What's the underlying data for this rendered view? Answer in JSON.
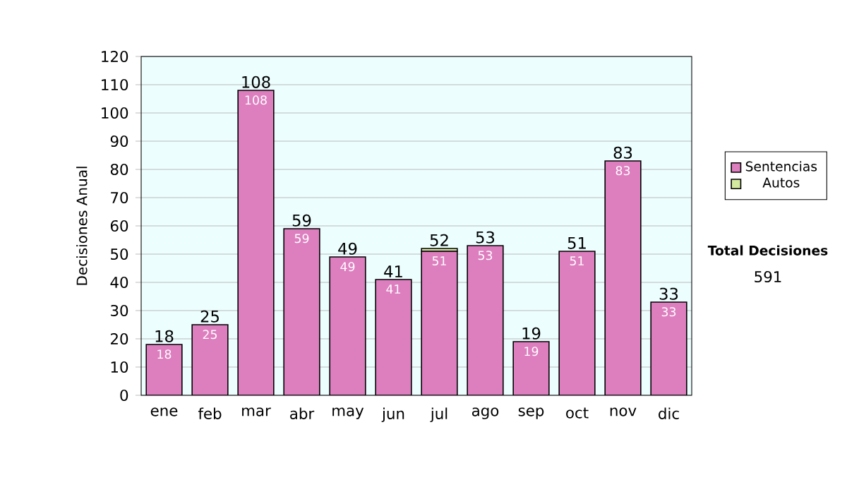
{
  "chart_data": {
    "type": "bar",
    "stacked": true,
    "ylabel": "Decisiones Anual",
    "categories": [
      "ene",
      "feb",
      "mar",
      "abr",
      "may",
      "jun",
      "jul",
      "ago",
      "sep",
      "oct",
      "nov",
      "dic"
    ],
    "series": [
      {
        "name": "Sentencias",
        "color": "#dd7fbf",
        "values": [
          18,
          25,
          108,
          59,
          49,
          41,
          51,
          53,
          19,
          51,
          83,
          33
        ],
        "value_labels": [
          "18",
          "25",
          "108",
          "59",
          "49",
          "41",
          "51",
          "53",
          "19",
          "51",
          "83",
          "33"
        ]
      },
      {
        "name": "Autos",
        "color": "#d4e8a0",
        "values": [
          0,
          0,
          0,
          0,
          0,
          0,
          1,
          0,
          0,
          0,
          0,
          0
        ]
      }
    ],
    "totals": [
      "18",
      "25",
      "108",
      "59",
      "49",
      "41",
      "52",
      "53",
      "19",
      "51",
      "83",
      "33"
    ],
    "ylim": [
      0,
      120
    ],
    "yticks": [
      0,
      10,
      20,
      30,
      40,
      50,
      60,
      70,
      80,
      90,
      100,
      110,
      120
    ],
    "grid": "y",
    "legend": "right",
    "annotations": [
      "Total Decisiones",
      "591"
    ]
  }
}
